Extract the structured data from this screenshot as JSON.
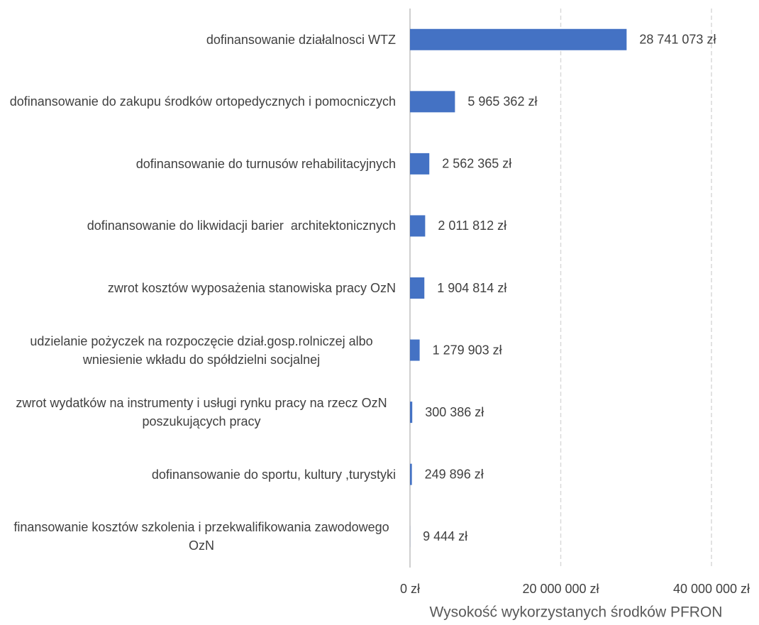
{
  "chart_data": {
    "type": "bar",
    "orientation": "horizontal",
    "categories": [
      "dofinansowanie działalnosci WTZ",
      "dofinansowanie do zakupu środków ortopedycznych i pomocniczych",
      "dofinansowanie do turnusów rehabilitacyjnych",
      "dofinansowanie do likwidacji barier  architektonicznych",
      "zwrot kosztów wyposażenia stanowiska pracy OzN",
      "udzielanie pożyczek na rozpoczęcie dział.gosp.rolniczej albo wniesienie wkładu do spółdzielni socjalnej",
      "zwrot wydatków na instrumenty i usługi rynku pracy na rzecz OzN poszukujących pracy",
      "dofinansowanie do sportu, kultury ,turystyki",
      "finansowanie kosztów szkolenia i przekwalifikowania zawodowego OzN"
    ],
    "values": [
      28741073,
      5965362,
      2562365,
      2011812,
      1904814,
      1279903,
      300386,
      249896,
      9444
    ],
    "value_labels": [
      "28 741 073 zł",
      "5 965 362 zł",
      "2 562 365 zł",
      "2 011 812 zł",
      "1 904 814 zł",
      "1 279 903 zł",
      "300 386 zł",
      "249 896 zł",
      "9 444 zł"
    ],
    "color": "#4472c4",
    "xlabel": "Wysokość wykorzystanych środków PFRON",
    "xlim": [
      0,
      40000000
    ],
    "xticks": [
      {
        "value": 0,
        "label": "0 zł"
      },
      {
        "value": 20000000,
        "label": "20 000 000 zł"
      },
      {
        "value": 40000000,
        "label": "40 000 000 zł"
      }
    ],
    "grid": true
  }
}
